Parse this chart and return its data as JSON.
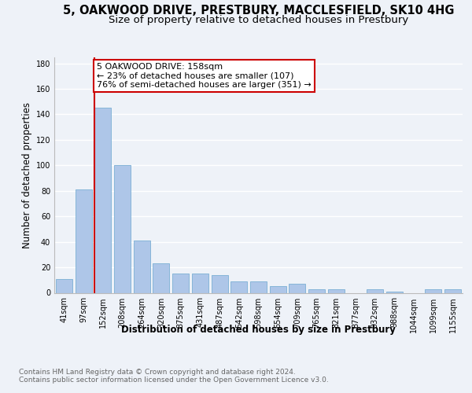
{
  "title": "5, OAKWOOD DRIVE, PRESTBURY, MACCLESFIELD, SK10 4HG",
  "subtitle": "Size of property relative to detached houses in Prestbury",
  "xlabel": "Distribution of detached houses by size in Prestbury",
  "ylabel": "Number of detached properties",
  "categories": [
    "41sqm",
    "97sqm",
    "152sqm",
    "208sqm",
    "264sqm",
    "320sqm",
    "375sqm",
    "431sqm",
    "487sqm",
    "542sqm",
    "598sqm",
    "654sqm",
    "709sqm",
    "765sqm",
    "821sqm",
    "877sqm",
    "932sqm",
    "988sqm",
    "1044sqm",
    "1099sqm",
    "1155sqm"
  ],
  "values": [
    11,
    81,
    145,
    100,
    41,
    23,
    15,
    15,
    14,
    9,
    9,
    5,
    7,
    3,
    3,
    0,
    3,
    1,
    0,
    3,
    3
  ],
  "bar_color": "#aec6e8",
  "bar_edge_color": "#7bafd4",
  "annotation_text": "5 OAKWOOD DRIVE: 158sqm\n← 23% of detached houses are smaller (107)\n76% of semi-detached houses are larger (351) →",
  "annotation_box_color": "#ffffff",
  "annotation_box_edge_color": "#cc0000",
  "ylim": [
    0,
    185
  ],
  "yticks": [
    0,
    20,
    40,
    60,
    80,
    100,
    120,
    140,
    160,
    180
  ],
  "footer_text": "Contains HM Land Registry data © Crown copyright and database right 2024.\nContains public sector information licensed under the Open Government Licence v3.0.",
  "background_color": "#eef2f8",
  "plot_bg_color": "#eef2f8",
  "grid_color": "#ffffff",
  "title_fontsize": 10.5,
  "subtitle_fontsize": 9.5,
  "axis_label_fontsize": 8.5,
  "tick_fontsize": 7,
  "annotation_fontsize": 8,
  "footer_fontsize": 6.5
}
